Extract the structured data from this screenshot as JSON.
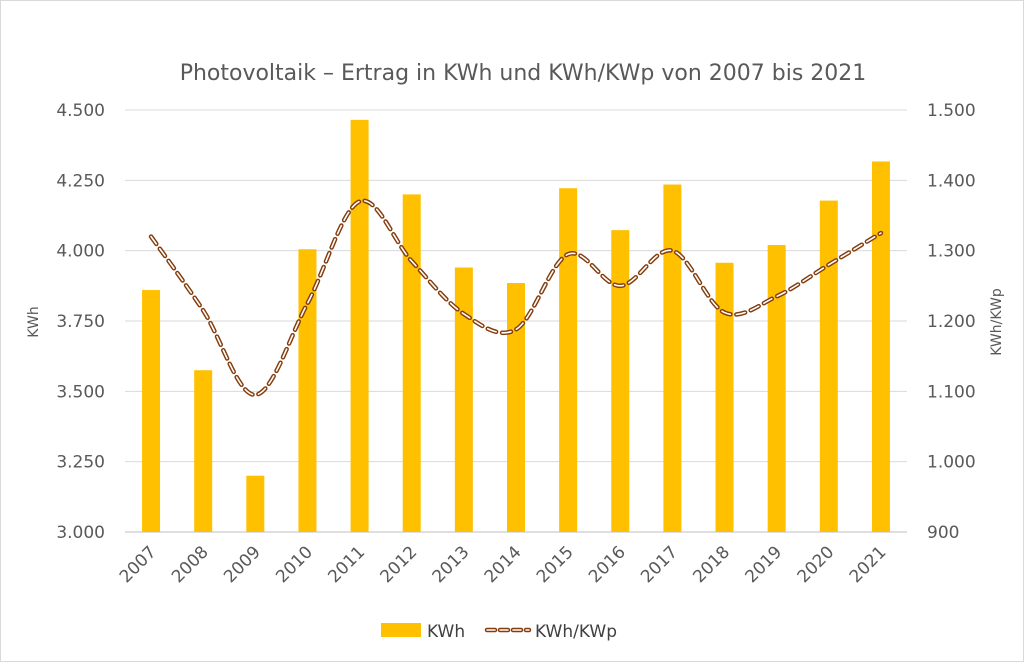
{
  "chart_data": {
    "type": "bar",
    "title": "Photovoltaik – Ertrag in KWh und KWh/KWp von 2007 bis 2021",
    "categories": [
      "2007",
      "2008",
      "2009",
      "2010",
      "2011",
      "2012",
      "2013",
      "2014",
      "2015",
      "2016",
      "2017",
      "2018",
      "2019",
      "2020",
      "2021"
    ],
    "series": [
      {
        "name": "KWh",
        "type": "bar",
        "axis": "left",
        "color": "#FFC000",
        "values": [
          3860,
          3575,
          3200,
          4005,
          4465,
          4200,
          3940,
          3885,
          4222,
          4073,
          4235,
          3957,
          4020,
          4178,
          4317
        ]
      },
      {
        "name": "KWh/KWp",
        "type": "line",
        "style": "dashed",
        "axis": "right",
        "color": "#843C0C",
        "values": [
          1320,
          1215,
          1095,
          1225,
          1370,
          1285,
          1210,
          1188,
          1295,
          1250,
          1300,
          1212,
          1235,
          1280,
          1325
        ]
      }
    ],
    "y_left": {
      "label": "KWh",
      "ylim": [
        3000,
        4500
      ],
      "ticks": [
        3000,
        3250,
        3500,
        3750,
        4000,
        4250,
        4500
      ],
      "tick_labels": [
        "3.000",
        "3.250",
        "3.500",
        "3.750",
        "4.000",
        "4.250",
        "4.500"
      ]
    },
    "y_right": {
      "label": "KWh/KWp",
      "ylim": [
        900,
        1500
      ],
      "ticks": [
        900,
        1000,
        1100,
        1200,
        1300,
        1400,
        1500
      ],
      "tick_labels": [
        "900",
        "1.000",
        "1.100",
        "1.200",
        "1.300",
        "1.400",
        "1.500"
      ]
    },
    "xlabel": "",
    "x_tick_rotation": "diagonal",
    "grid": true,
    "legend": "bottom"
  }
}
